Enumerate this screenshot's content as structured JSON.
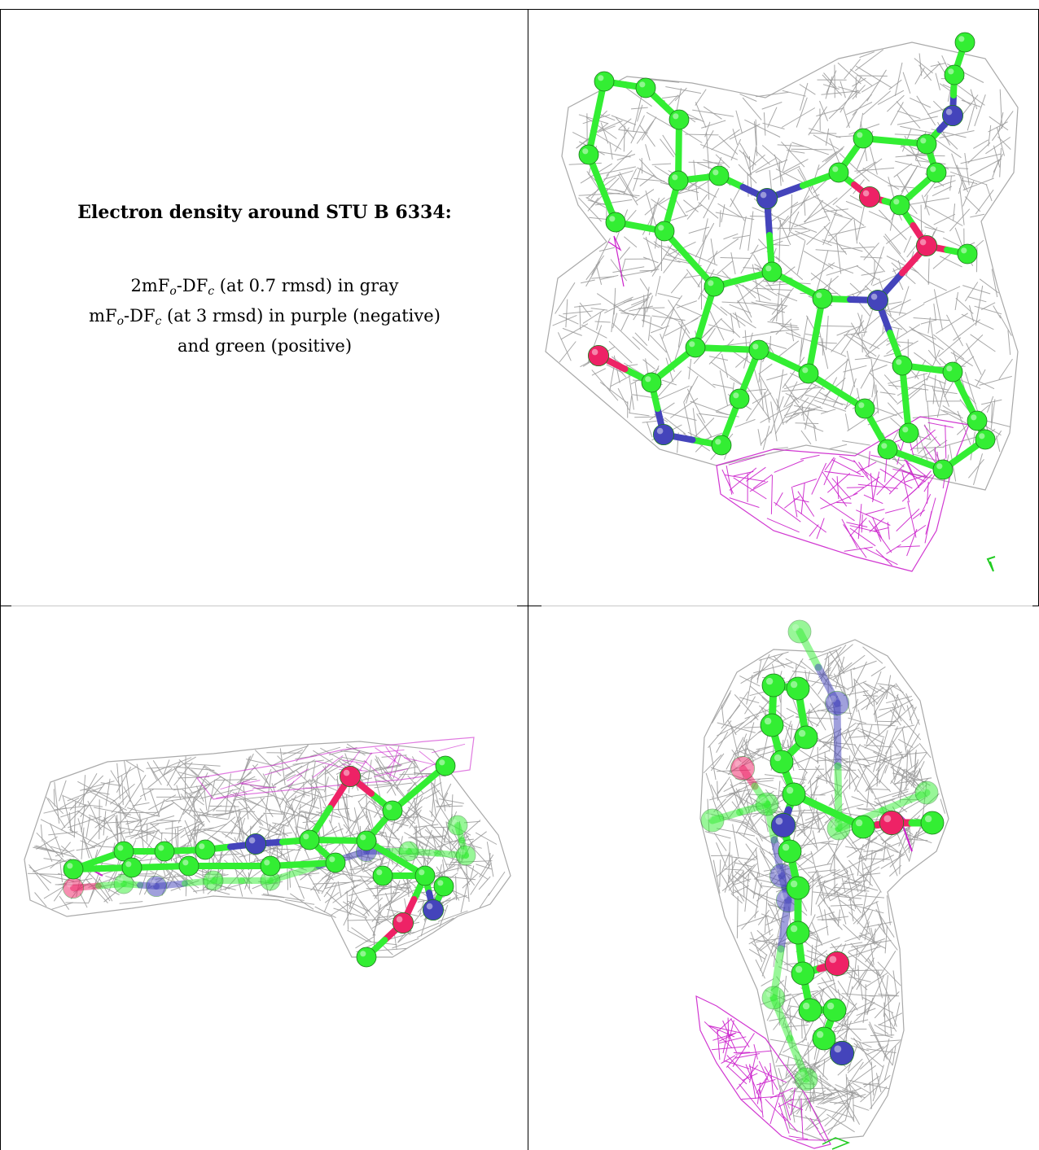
{
  "caption": {
    "title": "Electron density around STU B 6334:",
    "line1_main": "2mF",
    "line1_sub1": "o",
    "line1_mid": "-DF",
    "line1_sub2": "c",
    "line1_rest": " (at 0.7 rmsd) in gray",
    "line2_main": "mF",
    "line2_sub1": "o",
    "line2_mid": "-DF",
    "line2_sub2": "c",
    "line2_rest": " (at 3 rmsd) in purple (negative)",
    "line3": "and green (positive)"
  },
  "colors": {
    "carbon": "#33ee33",
    "nitrogen": "#4444bb",
    "oxygen": "#ee2266",
    "mesh_gray": "#9a9a9a",
    "mesh_negative": "#cc22cc",
    "mesh_positive": "#22cc22"
  },
  "views": [
    {
      "name": "top-right-view"
    },
    {
      "name": "bottom-left-view"
    },
    {
      "name": "bottom-right-view"
    }
  ]
}
